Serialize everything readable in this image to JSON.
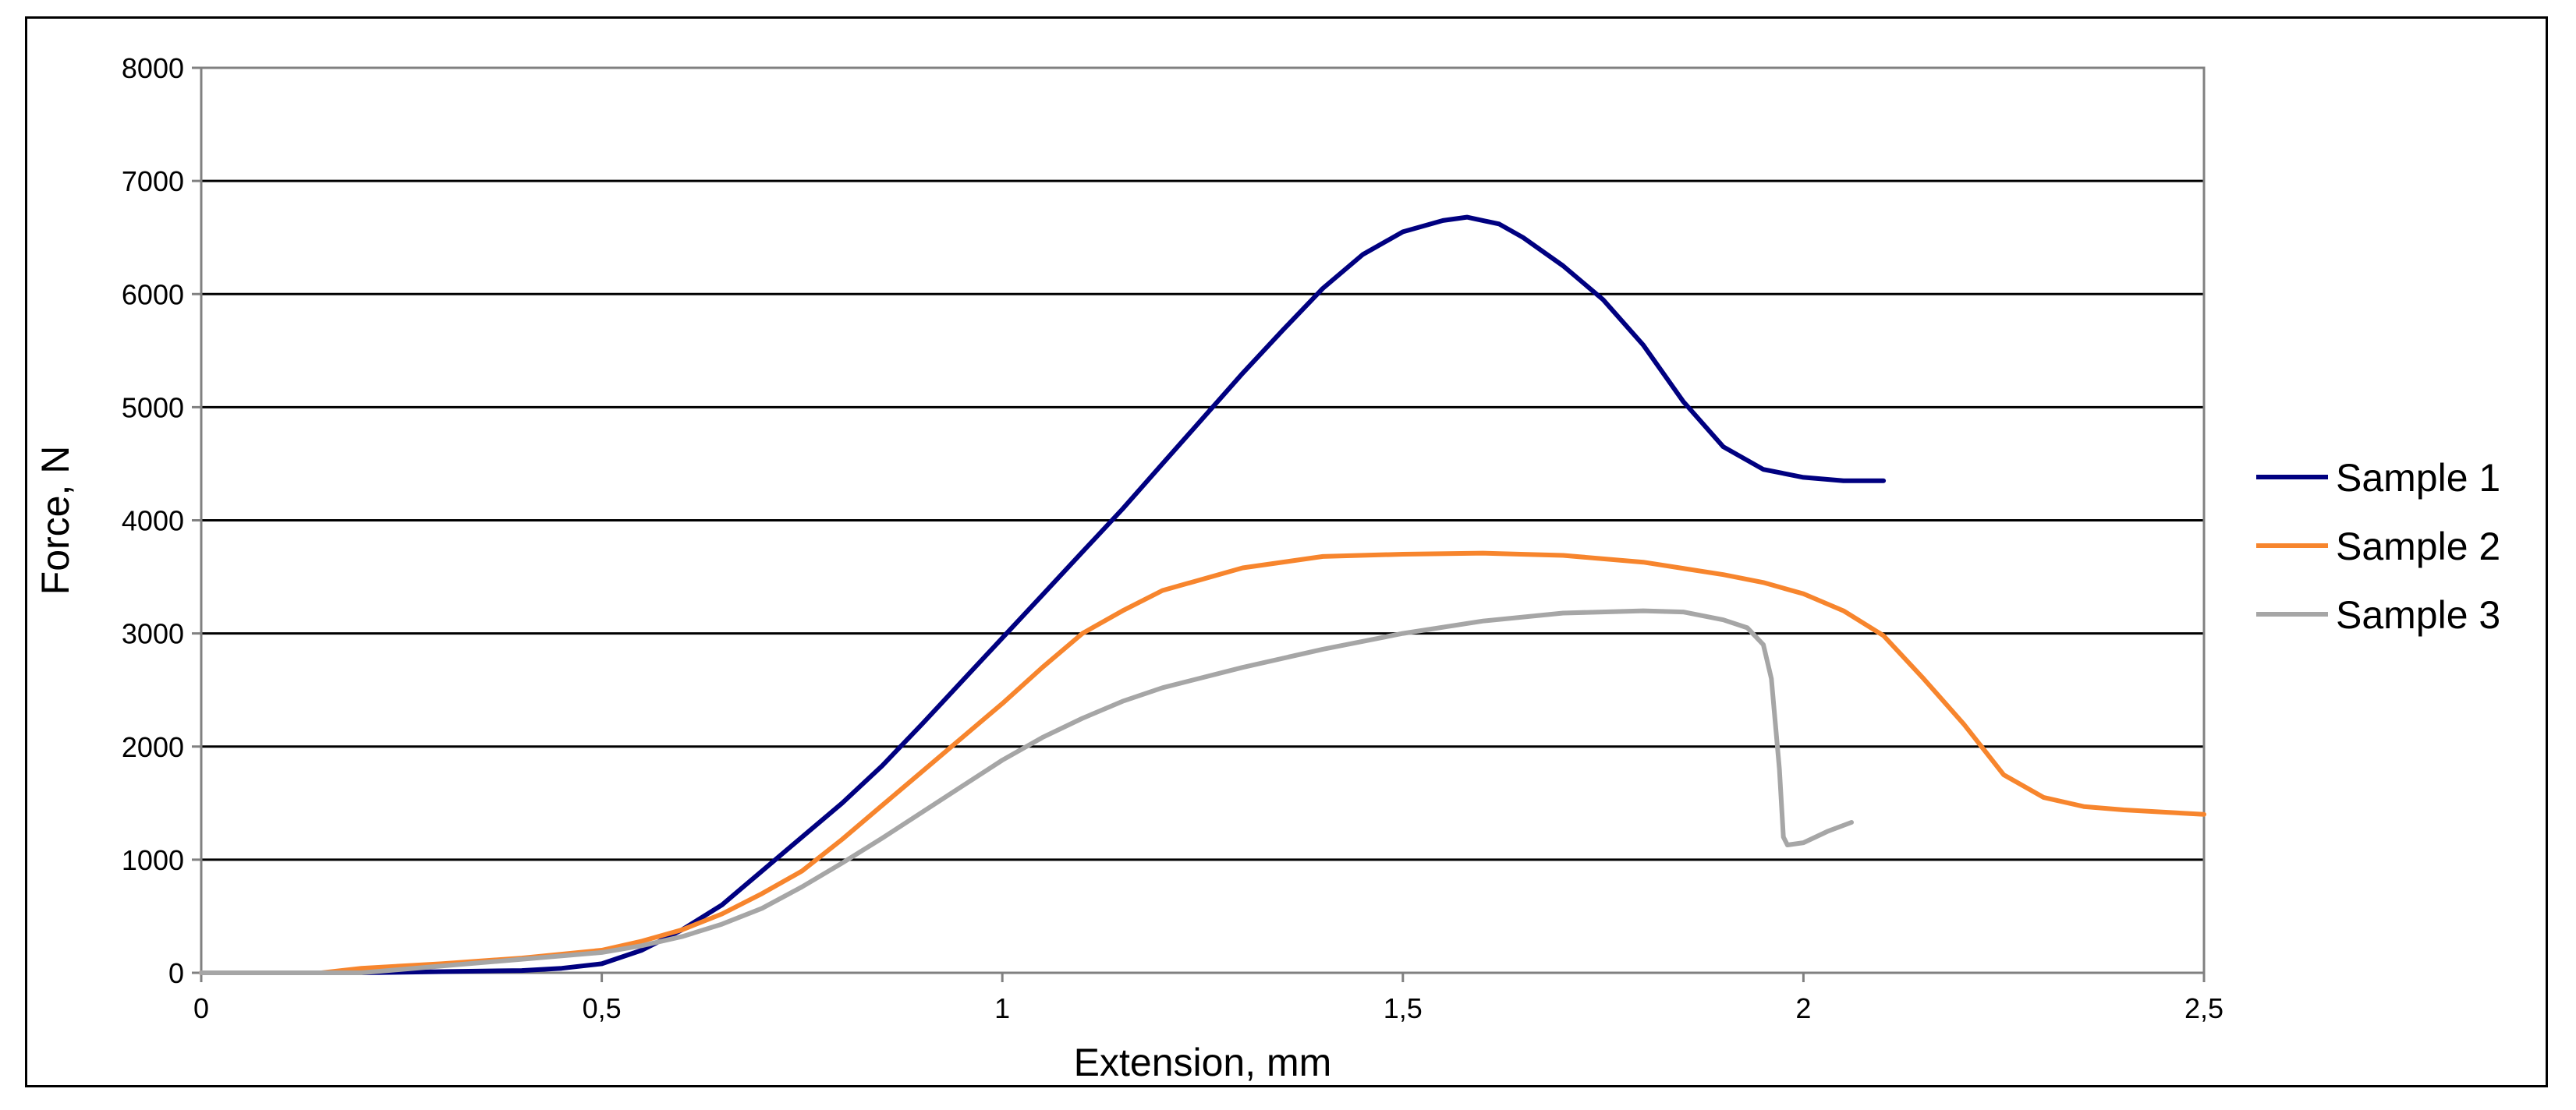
{
  "chart_data": {
    "type": "line",
    "title": "",
    "xlabel": "Extension, mm",
    "ylabel": "Force, N",
    "xlim": [
      0,
      2.5
    ],
    "ylim": [
      0,
      8000
    ],
    "x_ticks": [
      0,
      0.5,
      1,
      1.5,
      2,
      2.5
    ],
    "x_tick_labels": [
      "0",
      "0,5",
      "1",
      "1,5",
      "2",
      "2,5"
    ],
    "y_ticks": [
      0,
      1000,
      2000,
      3000,
      4000,
      5000,
      6000,
      7000,
      8000
    ],
    "y_tick_labels": [
      "0",
      "1000",
      "2000",
      "3000",
      "4000",
      "5000",
      "6000",
      "7000",
      "8000"
    ],
    "grid": "horizontal",
    "legend_position": "right",
    "series": [
      {
        "name": "Sample 1",
        "color": "#000080",
        "x": [
          0,
          0.2,
          0.3,
          0.4,
          0.45,
          0.5,
          0.55,
          0.6,
          0.65,
          0.7,
          0.75,
          0.8,
          0.85,
          0.9,
          0.95,
          1.0,
          1.05,
          1.1,
          1.15,
          1.2,
          1.25,
          1.3,
          1.35,
          1.4,
          1.45,
          1.5,
          1.55,
          1.58,
          1.62,
          1.65,
          1.7,
          1.75,
          1.8,
          1.85,
          1.9,
          1.95,
          2.0,
          2.05,
          2.1
        ],
        "y": [
          0,
          0,
          10,
          20,
          40,
          80,
          200,
          380,
          600,
          900,
          1200,
          1500,
          1830,
          2200,
          2580,
          2960,
          3340,
          3720,
          4100,
          4500,
          4900,
          5300,
          5680,
          6050,
          6350,
          6550,
          6650,
          6680,
          6620,
          6500,
          6250,
          5950,
          5550,
          5050,
          4650,
          4450,
          4380,
          4350,
          4350
        ]
      },
      {
        "name": "Sample 2",
        "color": "#F7852D",
        "x": [
          0,
          0.15,
          0.2,
          0.3,
          0.4,
          0.5,
          0.55,
          0.6,
          0.65,
          0.7,
          0.75,
          0.8,
          0.85,
          0.9,
          0.95,
          1.0,
          1.05,
          1.1,
          1.15,
          1.2,
          1.3,
          1.4,
          1.5,
          1.6,
          1.7,
          1.8,
          1.9,
          1.95,
          2.0,
          2.05,
          2.1,
          2.15,
          2.2,
          2.25,
          2.3,
          2.35,
          2.4,
          2.45,
          2.5
        ],
        "y": [
          0,
          0,
          40,
          80,
          130,
          200,
          280,
          380,
          520,
          700,
          900,
          1180,
          1480,
          1780,
          2080,
          2380,
          2700,
          3000,
          3200,
          3380,
          3580,
          3680,
          3700,
          3710,
          3690,
          3630,
          3520,
          3450,
          3350,
          3200,
          2980,
          2600,
          2200,
          1750,
          1550,
          1470,
          1440,
          1420,
          1400
        ]
      },
      {
        "name": "Sample 3",
        "color": "#A6A6A6",
        "x": [
          0,
          0.2,
          0.3,
          0.4,
          0.5,
          0.55,
          0.6,
          0.65,
          0.7,
          0.75,
          0.8,
          0.85,
          0.9,
          0.95,
          1.0,
          1.05,
          1.1,
          1.15,
          1.2,
          1.3,
          1.4,
          1.5,
          1.6,
          1.7,
          1.8,
          1.85,
          1.9,
          1.93,
          1.95,
          1.96,
          1.97,
          1.975,
          1.98,
          2.0,
          2.03,
          2.06
        ],
        "y": [
          0,
          0,
          60,
          120,
          180,
          240,
          320,
          430,
          570,
          760,
          970,
          1190,
          1420,
          1650,
          1880,
          2080,
          2250,
          2400,
          2520,
          2700,
          2860,
          3000,
          3110,
          3180,
          3200,
          3190,
          3120,
          3050,
          2900,
          2600,
          1800,
          1200,
          1130,
          1150,
          1250,
          1330
        ]
      }
    ]
  }
}
